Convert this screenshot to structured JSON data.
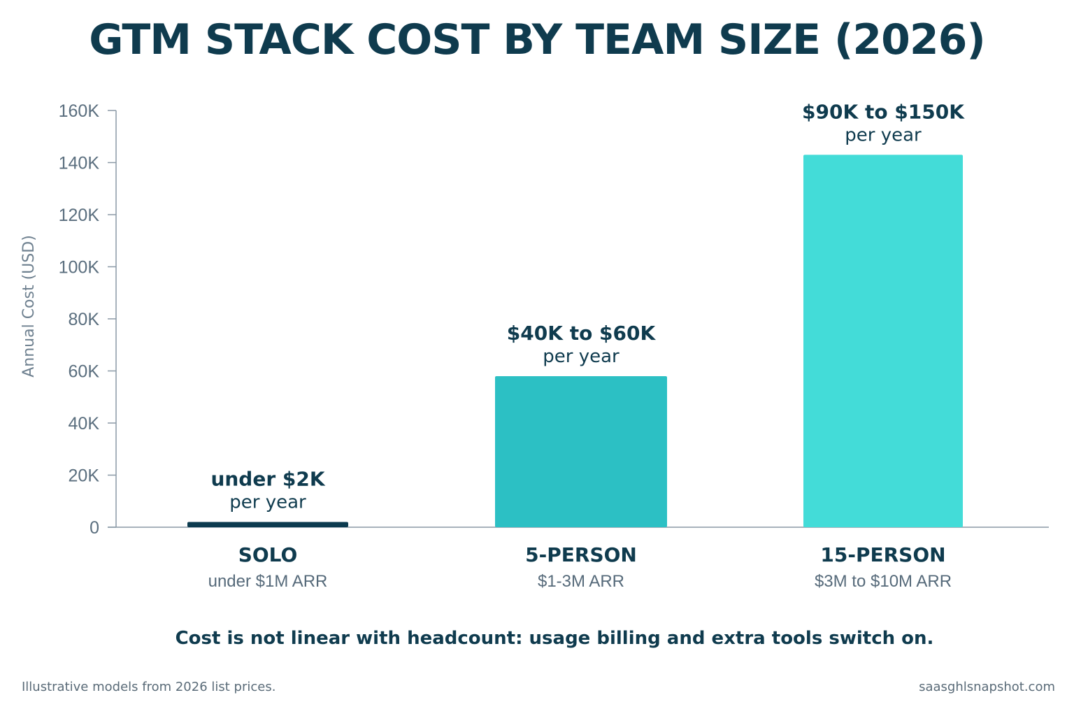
{
  "chart_data": {
    "type": "bar",
    "title": "GTM STACK COST BY TEAM SIZE (2026)",
    "ylabel": "Annual Cost (USD)",
    "xlabel": "",
    "ylim": [
      0,
      160000
    ],
    "yticks": [
      0,
      20000,
      40000,
      60000,
      80000,
      100000,
      120000,
      140000,
      160000
    ],
    "ytick_labels": [
      "0",
      "20K",
      "40K",
      "60K",
      "80K",
      "100K",
      "120K",
      "140K",
      "160K"
    ],
    "grid": false,
    "categories": [
      "SOLO",
      "5-PERSON",
      "15-PERSON"
    ],
    "category_subtitles": [
      "under $1M ARR",
      "$1-3M ARR",
      "$3M to $10M ARR"
    ],
    "values": [
      2000,
      58000,
      143000
    ],
    "data_labels": [
      "under $2K",
      "$40K to $60K",
      "$90K to $150K"
    ],
    "data_label_subtitles": [
      "per year",
      "per year",
      "per year"
    ],
    "colors": [
      "#0c3b4f",
      "#2cc0c4",
      "#43dcd8"
    ]
  },
  "caption": "Cost is not linear with headcount: usage billing and extra tools switch on.",
  "footnote": "Illustrative models from 2026 list prices.",
  "source": "saasghlsnapshot.com"
}
